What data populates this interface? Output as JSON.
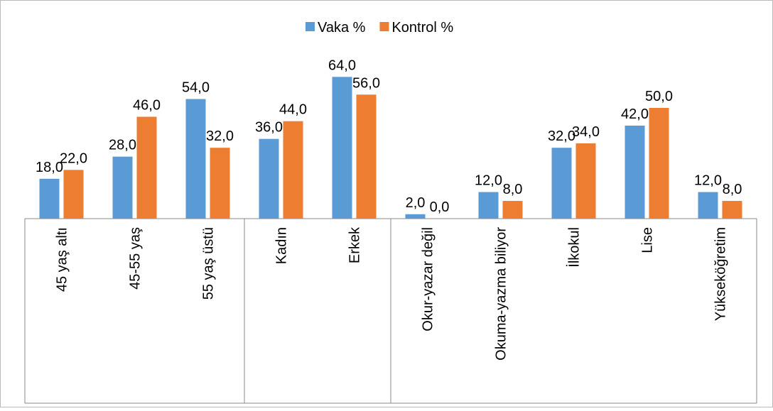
{
  "chart_data": {
    "type": "bar",
    "categories": [
      "45 yaş altı",
      "45-55 yaş",
      "55 yaş üstü",
      "Kadın",
      "Erkek",
      "Okur-yazar değil",
      "Okuma-yazma biliyor",
      "İlkokul",
      "Lise",
      "Yükseköğretim"
    ],
    "series": [
      {
        "name": "Vaka %",
        "color": "#5b9bd5",
        "values": [
          18,
          28,
          54,
          36,
          64,
          2,
          12,
          32,
          42,
          12
        ],
        "value_labels": [
          "18,0",
          "28,0",
          "54,0",
          "36,0",
          "64,0",
          "2,0",
          "12,0",
          "32,0",
          "42,0",
          "12,0"
        ]
      },
      {
        "name": "Kontrol %",
        "color": "#ed7d31",
        "values": [
          22,
          46,
          32,
          44,
          56,
          0,
          8,
          34,
          50,
          8
        ],
        "value_labels": [
          "22,0",
          "46,0",
          "32,0",
          "44,0",
          "56,0",
          "0,0",
          "8,0",
          "34,0",
          "50,0",
          "8,0"
        ]
      }
    ],
    "legend": "top"
  }
}
